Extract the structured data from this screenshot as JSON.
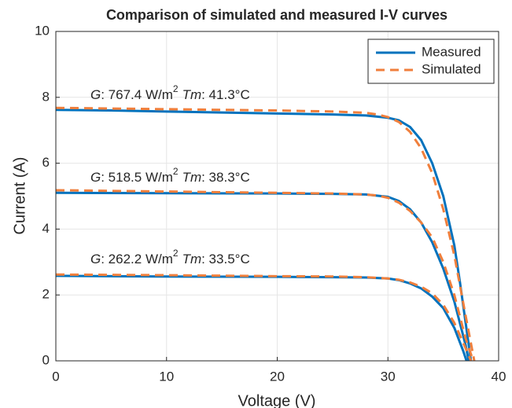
{
  "chart_data": {
    "type": "line",
    "title": "Comparison of simulated and measured I-V curves",
    "xlabel": "Voltage (V)",
    "ylabel": "Current (A)",
    "xlim": [
      0,
      40
    ],
    "xticks": [
      0,
      10,
      20,
      30,
      40
    ],
    "ylim": [
      0,
      10
    ],
    "yticks": [
      0,
      2,
      4,
      6,
      8,
      10
    ],
    "grid": true,
    "legend": "upper right",
    "series": [
      {
        "name": "Measured",
        "color": "#0072bd",
        "dashed": false,
        "curves": [
          {
            "x": [
              0,
              5,
              10,
              15,
              20,
              25,
              28,
              30,
              31,
              32,
              33,
              34,
              35,
              36,
              36.5,
              37,
              37.5
            ],
            "values": [
              7.62,
              7.6,
              7.57,
              7.54,
              7.51,
              7.48,
              7.45,
              7.38,
              7.3,
              7.1,
              6.7,
              6.0,
              5.0,
              3.5,
              2.4,
              1.2,
              0
            ]
          },
          {
            "x": [
              0,
              10,
              20,
              25,
              28,
              30,
              31,
              32,
              33,
              34,
              35,
              36,
              37,
              37.3
            ],
            "values": [
              5.1,
              5.09,
              5.08,
              5.07,
              5.05,
              4.98,
              4.85,
              4.6,
              4.2,
              3.6,
              2.8,
              1.8,
              0.5,
              0
            ]
          },
          {
            "x": [
              0,
              10,
              20,
              25,
              28,
              30,
              31,
              32,
              33,
              34,
              35,
              36,
              36.8,
              37.1
            ],
            "values": [
              2.58,
              2.56,
              2.55,
              2.54,
              2.53,
              2.5,
              2.45,
              2.35,
              2.2,
              1.95,
              1.6,
              1.0,
              0.3,
              0
            ]
          }
        ]
      },
      {
        "name": "Simulated",
        "color": "#f07f3c",
        "dashed": true,
        "curves": [
          {
            "x": [
              0,
              10,
              20,
              25,
              28,
              29,
              30,
              31,
              32,
              33,
              34,
              35,
              36,
              37,
              37.8
            ],
            "values": [
              7.68,
              7.64,
              7.6,
              7.57,
              7.53,
              7.48,
              7.4,
              7.25,
              6.95,
              6.45,
              5.7,
              4.6,
              3.2,
              1.4,
              0
            ]
          },
          {
            "x": [
              0,
              10,
              20,
              25,
              28,
              29,
              30,
              31,
              32,
              33,
              34,
              35,
              36,
              37,
              37.7
            ],
            "values": [
              5.18,
              5.14,
              5.1,
              5.08,
              5.05,
              5.02,
              4.95,
              4.8,
              4.55,
              4.2,
              3.75,
              3.0,
              2.0,
              0.7,
              0
            ]
          },
          {
            "x": [
              0,
              10,
              20,
              25,
              28,
              30,
              31,
              32,
              33,
              34,
              35,
              36,
              37,
              37.5
            ],
            "values": [
              2.62,
              2.6,
              2.57,
              2.56,
              2.54,
              2.5,
              2.46,
              2.38,
              2.25,
              2.05,
              1.7,
              1.15,
              0.4,
              0
            ]
          }
        ]
      }
    ],
    "annotations": [
      {
        "g": "G",
        "g_text": ": 767.4 W/m",
        "sup": "2",
        "tm": "Tm",
        "tm_text": ": 41.3°C"
      },
      {
        "g": "G",
        "g_text": ": 518.5 W/m",
        "sup": "2",
        "tm": "Tm",
        "tm_text": ": 38.3°C"
      },
      {
        "g": "G",
        "g_text": ": 262.2 W/m",
        "sup": "2",
        "tm": "Tm",
        "tm_text": ": 33.5°C"
      }
    ]
  }
}
